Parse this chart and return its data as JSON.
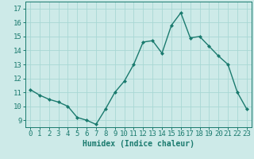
{
  "x": [
    0,
    1,
    2,
    3,
    4,
    5,
    6,
    7,
    8,
    9,
    10,
    11,
    12,
    13,
    14,
    15,
    16,
    17,
    18,
    19,
    20,
    21,
    22,
    23
  ],
  "y": [
    11.2,
    10.8,
    10.5,
    10.3,
    10.0,
    9.2,
    9.0,
    8.7,
    9.8,
    11.0,
    11.8,
    13.0,
    14.6,
    14.7,
    13.8,
    15.8,
    16.7,
    14.9,
    15.0,
    14.3,
    13.6,
    13.0,
    11.0,
    9.8
  ],
  "line_color": "#1a7a6e",
  "bg_color": "#cdeae8",
  "grid_color": "#a8d8d4",
  "xlabel": "Humidex (Indice chaleur)",
  "xlim": [
    -0.5,
    23.5
  ],
  "ylim": [
    8.5,
    17.5
  ],
  "yticks": [
    9,
    10,
    11,
    12,
    13,
    14,
    15,
    16,
    17
  ],
  "xtick_labels": [
    "0",
    "1",
    "2",
    "3",
    "4",
    "5",
    "6",
    "7",
    "8",
    "9",
    "10",
    "11",
    "12",
    "13",
    "14",
    "15",
    "16",
    "17",
    "18",
    "19",
    "20",
    "21",
    "22",
    "23"
  ],
  "marker": "D",
  "marker_size": 2,
  "line_width": 1.0,
  "xlabel_fontsize": 7,
  "tick_fontsize": 6.5
}
